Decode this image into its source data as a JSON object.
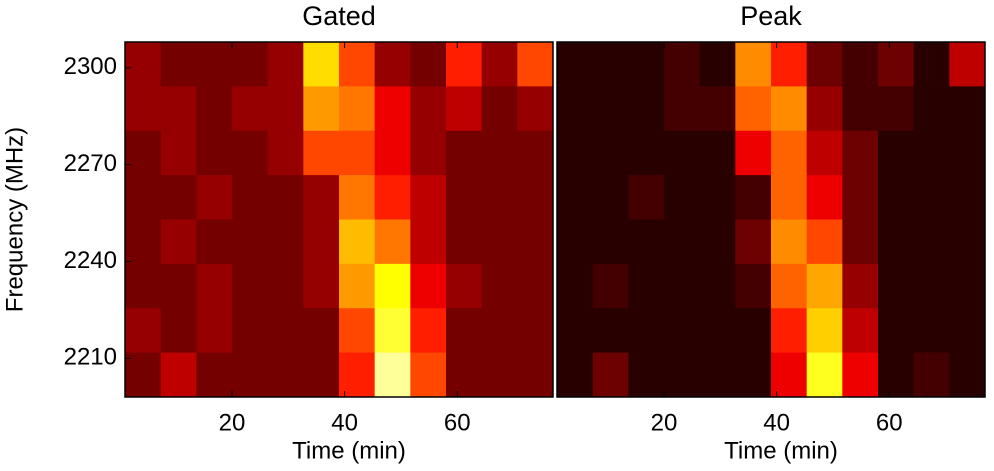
{
  "chart_data": [
    {
      "type": "heatmap",
      "title": "Gated",
      "x_label": "Time (min)",
      "y_label": "Frequency (MHz)",
      "colormap": "hot",
      "xlim": [
        1,
        77
      ],
      "ylim": [
        2198,
        2308
      ],
      "xticks": [
        20,
        40,
        60
      ],
      "yticks": [
        2210,
        2240,
        2270,
        2300
      ],
      "values": [
        [
          0.22,
          0.17,
          0.17,
          0.17,
          0.22,
          0.7,
          0.48,
          0.22,
          0.17,
          0.42,
          0.22,
          0.48
        ],
        [
          0.22,
          0.22,
          0.17,
          0.22,
          0.22,
          0.6,
          0.55,
          0.35,
          0.22,
          0.28,
          0.17,
          0.22
        ],
        [
          0.17,
          0.22,
          0.17,
          0.17,
          0.22,
          0.48,
          0.48,
          0.35,
          0.22,
          0.17,
          0.17,
          0.17
        ],
        [
          0.17,
          0.17,
          0.22,
          0.17,
          0.17,
          0.22,
          0.55,
          0.42,
          0.28,
          0.17,
          0.17,
          0.17
        ],
        [
          0.17,
          0.22,
          0.17,
          0.17,
          0.17,
          0.22,
          0.65,
          0.55,
          0.28,
          0.17,
          0.17,
          0.17
        ],
        [
          0.17,
          0.17,
          0.22,
          0.17,
          0.17,
          0.22,
          0.6,
          0.75,
          0.35,
          0.22,
          0.17,
          0.17
        ],
        [
          0.22,
          0.17,
          0.22,
          0.17,
          0.17,
          0.17,
          0.48,
          0.8,
          0.42,
          0.17,
          0.17,
          0.17
        ],
        [
          0.17,
          0.28,
          0.17,
          0.17,
          0.17,
          0.17,
          0.42,
          0.9,
          0.48,
          0.17,
          0.17,
          0.17
        ]
      ]
    },
    {
      "type": "heatmap",
      "title": "Peak",
      "x_label": "Time (min)",
      "colormap": "hot",
      "xlim": [
        1,
        77
      ],
      "ylim": [
        2198,
        2308
      ],
      "xticks": [
        20,
        40,
        60
      ],
      "values": [
        [
          0.06,
          0.06,
          0.06,
          0.1,
          0.06,
          0.58,
          0.42,
          0.16,
          0.1,
          0.16,
          0.06,
          0.28
        ],
        [
          0.06,
          0.06,
          0.06,
          0.1,
          0.1,
          0.52,
          0.58,
          0.22,
          0.1,
          0.1,
          0.06,
          0.06
        ],
        [
          0.06,
          0.06,
          0.06,
          0.06,
          0.06,
          0.35,
          0.52,
          0.28,
          0.16,
          0.06,
          0.06,
          0.06
        ],
        [
          0.06,
          0.06,
          0.1,
          0.06,
          0.06,
          0.1,
          0.52,
          0.35,
          0.16,
          0.06,
          0.06,
          0.06
        ],
        [
          0.06,
          0.06,
          0.06,
          0.06,
          0.06,
          0.16,
          0.58,
          0.48,
          0.16,
          0.06,
          0.06,
          0.06
        ],
        [
          0.06,
          0.1,
          0.06,
          0.06,
          0.06,
          0.1,
          0.52,
          0.62,
          0.22,
          0.06,
          0.06,
          0.06
        ],
        [
          0.06,
          0.06,
          0.06,
          0.06,
          0.06,
          0.06,
          0.42,
          0.68,
          0.28,
          0.06,
          0.06,
          0.06
        ],
        [
          0.06,
          0.16,
          0.06,
          0.06,
          0.06,
          0.06,
          0.35,
          0.78,
          0.35,
          0.06,
          0.1,
          0.06
        ]
      ]
    }
  ]
}
